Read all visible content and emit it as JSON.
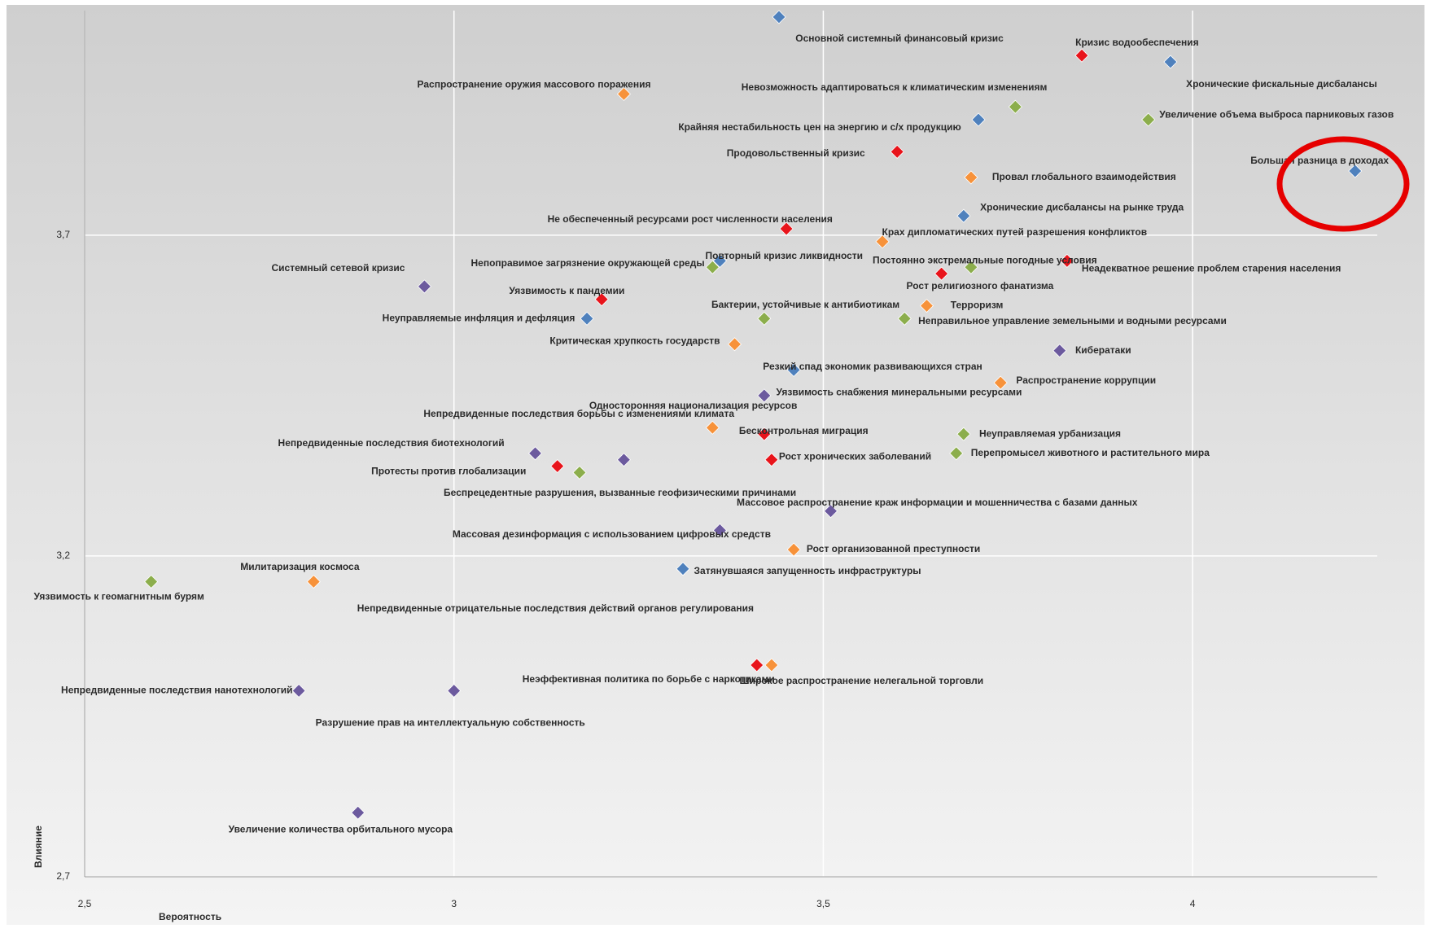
{
  "chart_data": {
    "type": "scatter",
    "x_label": "Вероятность",
    "y_label": "Влияние",
    "xlim": [
      2.5,
      4.25
    ],
    "ylim": [
      2.7,
      4.05
    ],
    "xticks": [
      {
        "value": 2.5,
        "label": "2,5"
      },
      3,
      {
        "value": 3.5,
        "label": "3,5"
      },
      4
    ],
    "yticks": [
      {
        "value": 2.7,
        "label": "2,7"
      },
      {
        "value": 3.2,
        "label": "3,2"
      },
      {
        "value": 3.7,
        "label": "3,7"
      }
    ],
    "grid": true,
    "labels": [
      "Основной системный финансовый кризис",
      "Кризис водообеспечения",
      "Хронические фискальные дисбалансы",
      "Распространение оружия массового поражения",
      "Невозможность адаптироваться к климатическим изменениям",
      "Крайняя нестабильность цен на энергию и с/х продукцию",
      "Увеличение объема выброса парниковых газов",
      "Продовольственный кризис",
      "Большая разница в доходах",
      "Провал глобального взаимодействия",
      "Хронические дисбалансы на рынке труда",
      "Не обеспеченный ресурсами рост численности населения",
      "Крах дипломатических путей разрешения конфликтов",
      "Повторный кризис ликвидности",
      "Непоправимое загрязнение окружающей среды",
      "Неадекватное решение проблем старения населения",
      "Постоянно экстремальные погодные условия",
      "Системный сетевой кризис",
      "Рост религиозного фанатизма",
      "Уязвимость к пандемии",
      "Терроризм",
      "Бактерии, устойчивые к антибиотикам",
      "Неуправляемые инфляция и дефляция",
      "Неправильное управление земельными и водными ресурсами",
      "Критическая хрупкость государств",
      "Кибератаки",
      "Резкий спад экономик развивающихся стран",
      "Распространение коррупции",
      "Уязвимость снабжения минеральными ресурсами",
      "Односторонняя национализация ресурсов",
      "Бесконтрольная миграция",
      "Неуправляемая урбанизация",
      "Непредвиденные последствия биотехнологий",
      "Перепромысел животного и растительного мира",
      "Непредвиденные последствия борьбы с изменениями климата",
      "Рост хронических заболеваний",
      "Протесты против глобализации",
      "Беспрецедентные разрушения, вызванные геофизическими причинами",
      "Массовое распространение краж информации и мошенничества с базами данных",
      "Массовая дезинформация с использованием цифровых средств",
      "Рост организованной преступности",
      "Затянувшаяся запущенность инфраструктуры",
      "Уязвимость к геомагнитным бурям",
      "Милитаризация космоса",
      "Неэффективная политика по борьбе с наркотиками",
      "Широкое распространение нелегальной торговли",
      "Непредвиденные последствия нанотехнологий",
      "Разрушение прав на интеллектуальную собственность",
      "Увеличение количества орбитального мусора",
      "Непредвиденные отрицательные последствия действий органов регулирования"
    ],
    "x": [
      3.44,
      3.85,
      3.97,
      3.23,
      3.76,
      3.71,
      3.94,
      3.6,
      4.22,
      3.7,
      3.69,
      3.45,
      3.58,
      3.36,
      3.35,
      3.83,
      3.7,
      2.96,
      3.66,
      3.2,
      3.64,
      3.42,
      3.18,
      3.61,
      3.38,
      3.82,
      3.46,
      3.74,
      3.42,
      3.35,
      3.42,
      3.69,
      3.11,
      3.68,
      3.23,
      3.43,
      3.14,
      3.17,
      3.51,
      3.36,
      3.46,
      3.31,
      2.59,
      2.81,
      3.41,
      3.43,
      2.79,
      3.0,
      2.87,
      3.31
    ],
    "y": [
      4.04,
      3.98,
      3.97,
      3.92,
      3.9,
      3.88,
      3.88,
      3.83,
      3.8,
      3.79,
      3.73,
      3.71,
      3.69,
      3.66,
      3.65,
      3.66,
      3.65,
      3.62,
      3.64,
      3.6,
      3.59,
      3.57,
      3.57,
      3.57,
      3.53,
      3.52,
      3.49,
      3.47,
      3.45,
      3.4,
      3.39,
      3.39,
      3.36,
      3.36,
      3.35,
      3.35,
      3.34,
      3.33,
      3.27,
      3.24,
      3.21,
      3.18,
      3.16,
      3.16,
      3.03,
      3.03,
      2.99,
      2.99,
      2.8,
      3.18
    ],
    "colors": [
      "#4f81bd",
      "#e8141b",
      "#4f81bd",
      "#f7923a",
      "#8cae4c",
      "#4f81bd",
      "#8cae4c",
      "#e8141b",
      "#4f81bd",
      "#f7923a",
      "#4f81bd",
      "#e8141b",
      "#f7923a",
      "#4f81bd",
      "#8cae4c",
      "#e8141b",
      "#8cae4c",
      "#6c5a9e",
      "#e8141b",
      "#e8141b",
      "#f7923a",
      "#8cae4c",
      "#4f81bd",
      "#8cae4c",
      "#f7923a",
      "#6c5a9e",
      "#4f81bd",
      "#f7923a",
      "#6c5a9e",
      "#f7923a",
      "#e8141b",
      "#8cae4c",
      "#6c5a9e",
      "#8cae4c",
      "#6c5a9e",
      "#e8141b",
      "#e8141b",
      "#8cae4c",
      "#6c5a9e",
      "#6c5a9e",
      "#f7923a",
      "#4f81bd",
      "#8cae4c",
      "#f7923a",
      "#e8141b",
      "#f7923a",
      "#6c5a9e",
      "#6c5a9e",
      "#6c5a9e",
      "#4f81bd"
    ]
  }
}
